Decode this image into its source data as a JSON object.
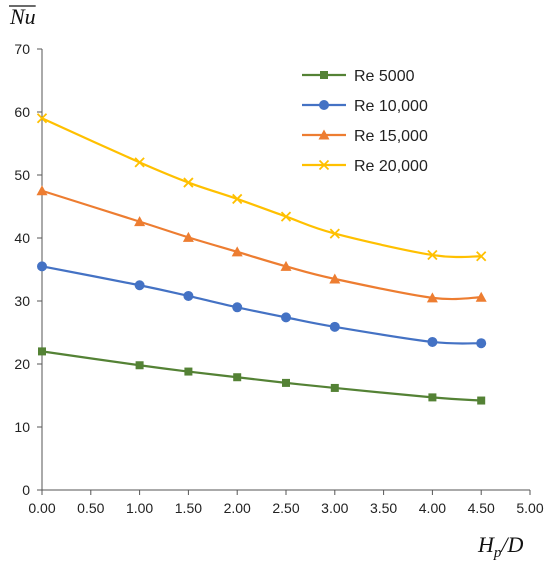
{
  "chart_data": {
    "type": "line",
    "title": "",
    "ylabel": "Nu",
    "xlabel": "Hp/D",
    "xlim": [
      0,
      5
    ],
    "ylim": [
      0,
      70
    ],
    "x_ticks": [
      "0.00",
      "0.50",
      "1.00",
      "1.50",
      "2.00",
      "2.50",
      "3.00",
      "3.50",
      "4.00",
      "4.50",
      "5.00"
    ],
    "y_ticks": [
      "0",
      "10",
      "20",
      "30",
      "40",
      "50",
      "60",
      "70"
    ],
    "grid": false,
    "legend_position": "top-right",
    "x": [
      0,
      1,
      1.5,
      2,
      2.5,
      3,
      4,
      4.5
    ],
    "series": [
      {
        "name": "Re 5000",
        "color": "#548235",
        "marker": "square",
        "values": [
          22.0,
          19.8,
          18.8,
          17.9,
          17.0,
          16.2,
          14.7,
          14.2
        ]
      },
      {
        "name": "Re 10,000",
        "color": "#4472C4",
        "marker": "circle",
        "values": [
          35.5,
          32.5,
          30.8,
          29.0,
          27.4,
          25.9,
          23.5,
          23.3
        ]
      },
      {
        "name": "Re 15,000",
        "color": "#ED7D31",
        "marker": "triangle",
        "values": [
          47.5,
          42.6,
          40.1,
          37.8,
          35.5,
          33.5,
          30.5,
          30.6
        ]
      },
      {
        "name": "Re 20,000",
        "color": "#FFC000",
        "marker": "x",
        "values": [
          59.0,
          52.0,
          48.8,
          46.2,
          43.4,
          40.7,
          37.3,
          37.1
        ]
      }
    ]
  }
}
